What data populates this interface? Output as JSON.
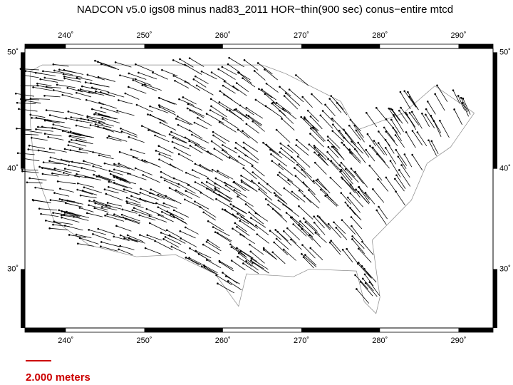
{
  "title": "NADCON v5.0 igs08 minus nad83_2011 HOR−thin(900 sec) conus−entire mtcd",
  "map": {
    "lonlim": [
      234.8,
      294.4
    ],
    "latlim": [
      23.6,
      50.3
    ],
    "lon_ticks": [
      {
        "value": 240,
        "label": "240˚"
      },
      {
        "value": 250,
        "label": "250˚"
      },
      {
        "value": 260,
        "label": "260˚"
      },
      {
        "value": 270,
        "label": "270˚"
      },
      {
        "value": 280,
        "label": "280˚"
      },
      {
        "value": 290,
        "label": "290˚"
      }
    ],
    "lat_ticks": [
      {
        "value": 30,
        "label": "30˚"
      },
      {
        "value": 40,
        "label": "40˚"
      },
      {
        "value": 50,
        "label": "50˚"
      }
    ]
  },
  "scale": {
    "label": "2.000 meters",
    "color": "#cc0000"
  }
}
